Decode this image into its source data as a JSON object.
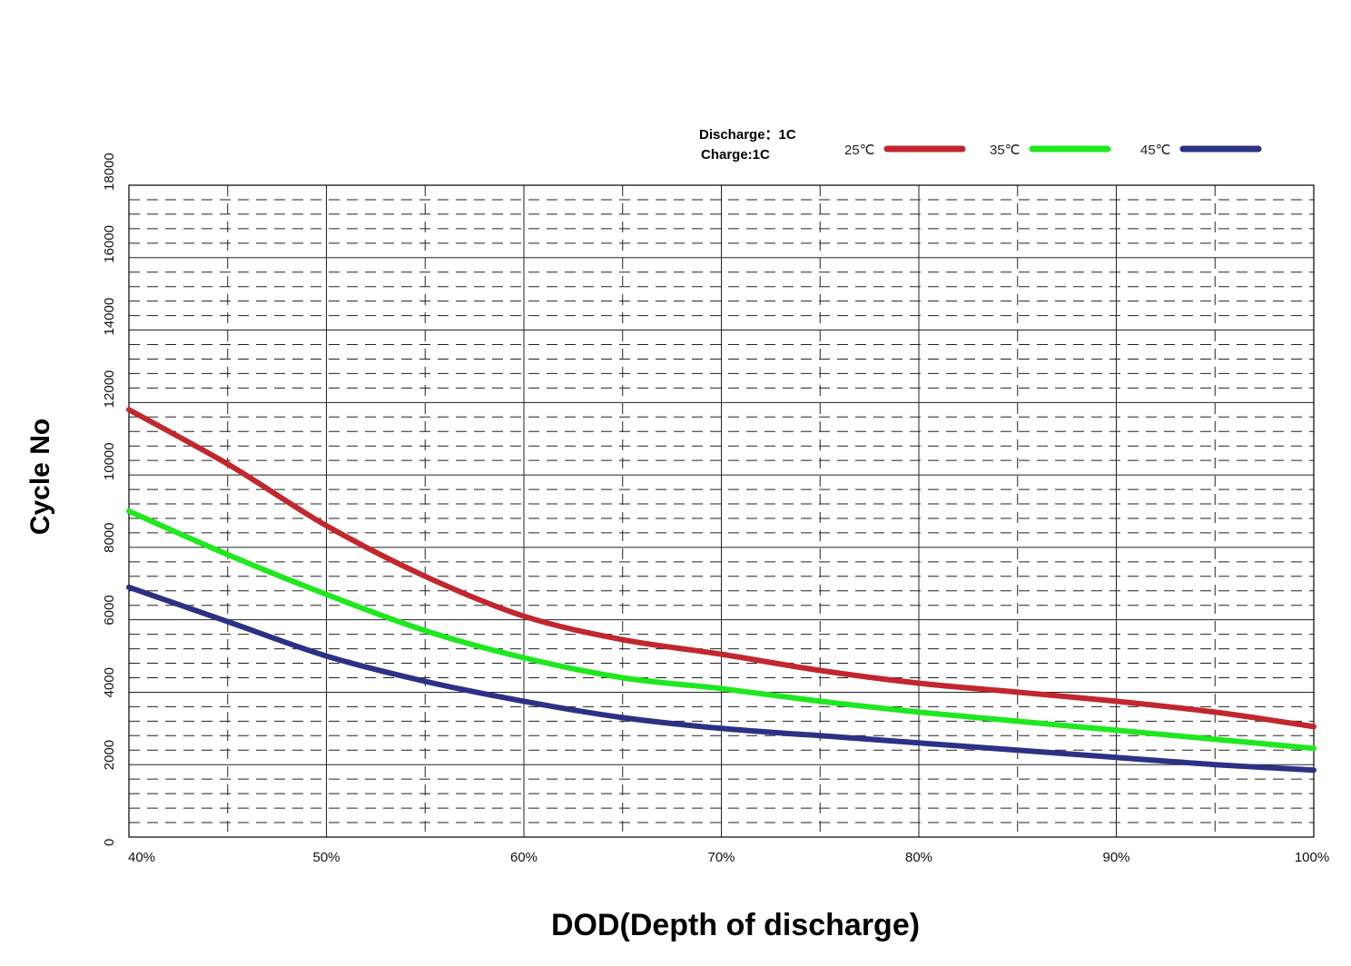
{
  "chart_data": {
    "type": "line",
    "xlabel": "DOD(Depth of discharge)",
    "ylabel": "Cycle No",
    "conditions": [
      "Discharge：1C",
      "Charge:1C"
    ],
    "x_ticks": [
      "40%",
      "50%",
      "60%",
      "70%",
      "80%",
      "90%",
      "100%"
    ],
    "y_ticks": [
      "0",
      "2000",
      "4000",
      "6000",
      "8000",
      "10000",
      "12000",
      "14000",
      "16000",
      "18000"
    ],
    "xlim": [
      40,
      100
    ],
    "ylim": [
      0,
      18000
    ],
    "grid": true,
    "legend_position": "top-right",
    "x": [
      40,
      45,
      50,
      55,
      60,
      65,
      70,
      75,
      80,
      85,
      90,
      95,
      100
    ],
    "series": [
      {
        "name": "25℃",
        "color": "#c1272d",
        "values": [
          11800,
          10300,
          8600,
          7200,
          6100,
          5450,
          5050,
          4600,
          4250,
          4000,
          3750,
          3450,
          3050
        ]
      },
      {
        "name": "35℃",
        "color": "#1ee81e",
        "values": [
          9000,
          7800,
          6700,
          5700,
          4950,
          4400,
          4100,
          3750,
          3450,
          3200,
          2950,
          2700,
          2450
        ]
      },
      {
        "name": "45℃",
        "color": "#2b3184",
        "values": [
          6900,
          5950,
          5000,
          4300,
          3750,
          3300,
          3000,
          2800,
          2600,
          2400,
          2200,
          2000,
          1850
        ]
      }
    ]
  }
}
